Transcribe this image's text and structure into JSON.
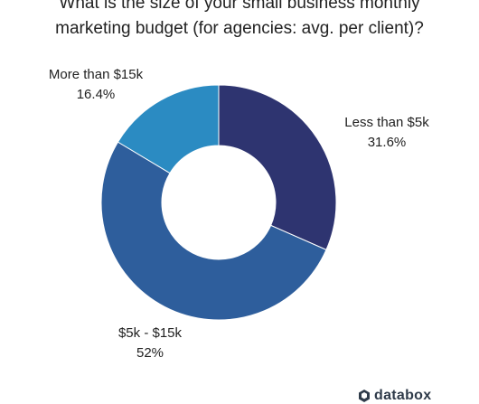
{
  "title_lines": [
    "What is the size of your small business monthly",
    "marketing budget (for agencies: avg. per client)?"
  ],
  "chart_data": {
    "type": "pie",
    "variant": "donut",
    "title": "What is the size of your small business monthly marketing budget (for agencies: avg. per client)?",
    "slices": [
      {
        "label": "Less than $5k",
        "value": 31.6,
        "display": "31.6%",
        "color": "#2e3470"
      },
      {
        "label": "$5k - $15k",
        "value": 52,
        "display": "52%",
        "color": "#2e5e9c"
      },
      {
        "label": "More than $15k",
        "value": 16.4,
        "display": "16.4%",
        "color": "#2b8bc2"
      }
    ]
  },
  "brand": {
    "name": "databox",
    "icon": "databox-logo-icon",
    "color": "#2f3b4a"
  }
}
